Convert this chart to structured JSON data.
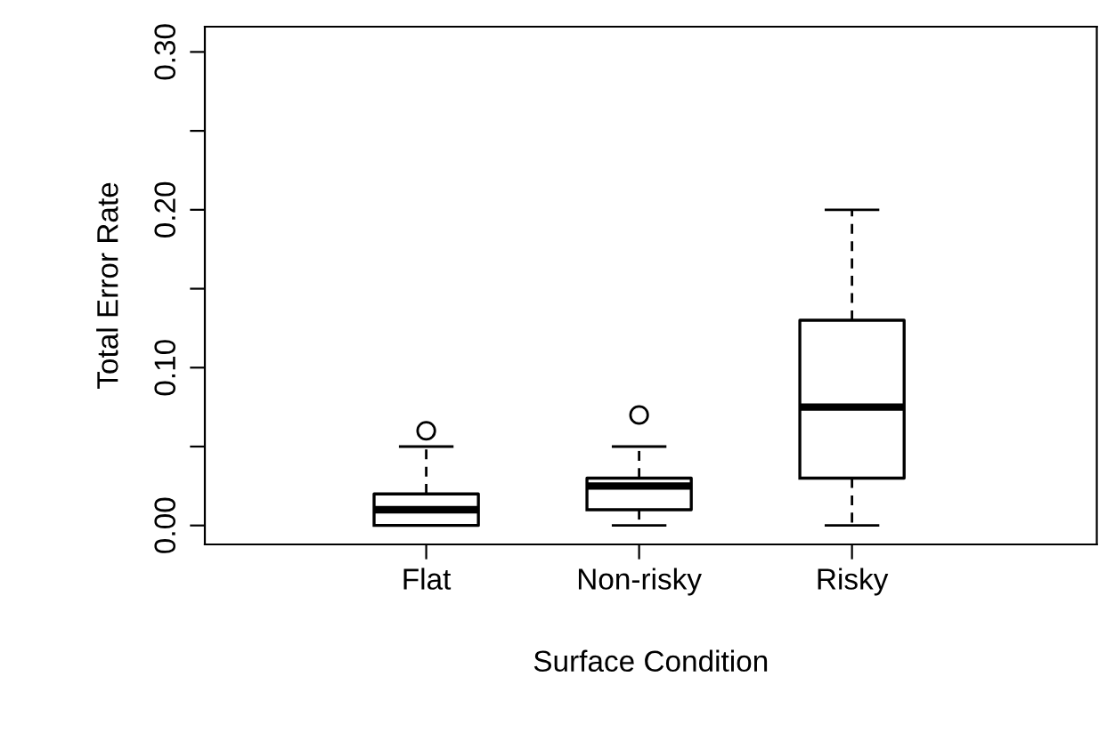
{
  "chart_data": {
    "type": "box",
    "xlabel": "Surface Condition",
    "ylabel": "Total Error Rate",
    "categories": [
      "Flat",
      "Non-risky",
      "Risky"
    ],
    "boxes": [
      {
        "low": 0,
        "q1": 0,
        "median": 0.01,
        "q3": 0.02,
        "high": 0.05,
        "outliers": [
          0.06
        ]
      },
      {
        "low": 0,
        "q1": 0.01,
        "median": 0.025,
        "q3": 0.03,
        "high": 0.05,
        "outliers": [
          0.07
        ]
      },
      {
        "low": 0,
        "q1": 0.03,
        "median": 0.075,
        "q3": 0.13,
        "high": 0.2
      }
    ],
    "color": "#000000",
    "ylim": [
      -0.012,
      0.316
    ],
    "yticks": [
      {
        "value": 0,
        "label": "0.00"
      },
      {
        "value": 0.05,
        "label": null
      },
      {
        "value": 0.1,
        "label": "0.10"
      },
      {
        "value": 0.15,
        "label": null
      },
      {
        "value": 0.2,
        "label": "0.20"
      },
      {
        "value": 0.25,
        "label": null
      },
      {
        "value": 0.3,
        "label": "0.30"
      }
    ],
    "grid": false,
    "legend": false
  }
}
